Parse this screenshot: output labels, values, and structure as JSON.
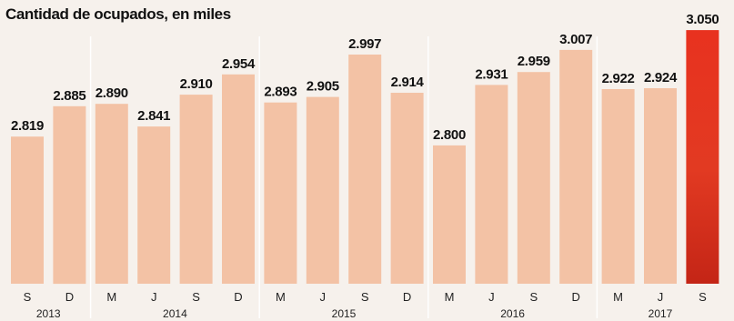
{
  "chart_data": {
    "type": "bar",
    "title": "Cantidad de ocupados, en miles",
    "xlabel": "",
    "ylabel": "",
    "ylim": [
      2500,
      3060
    ],
    "grid": false,
    "categories": [
      "S",
      "D",
      "M",
      "J",
      "S",
      "D",
      "M",
      "J",
      "S",
      "D",
      "M",
      "J",
      "S",
      "D",
      "M",
      "J",
      "S"
    ],
    "values": [
      2819,
      2885,
      2890,
      2841,
      2910,
      2954,
      2893,
      2905,
      2997,
      2914,
      2800,
      2931,
      2959,
      3007,
      2922,
      2924,
      3050
    ],
    "value_labels": [
      "2.819",
      "2.885",
      "2.890",
      "2.841",
      "2.910",
      "2.954",
      "2.893",
      "2.905",
      "2.997",
      "2.914",
      "2.800",
      "2.931",
      "2.959",
      "3.007",
      "2.922",
      "2.924",
      "3.050"
    ],
    "years": [
      {
        "label": "2013",
        "from": 0,
        "to": 1
      },
      {
        "label": "2014",
        "from": 2,
        "to": 5
      },
      {
        "label": "2015",
        "from": 6,
        "to": 9
      },
      {
        "label": "2016",
        "from": 10,
        "to": 13
      },
      {
        "label": "2017",
        "from": 14,
        "to": 16
      }
    ],
    "highlight_index": 16,
    "colors": {
      "bar": "#f3c2a5",
      "highlight": "#e8321f",
      "text": "#111111",
      "divider": "#ffffff"
    }
  }
}
